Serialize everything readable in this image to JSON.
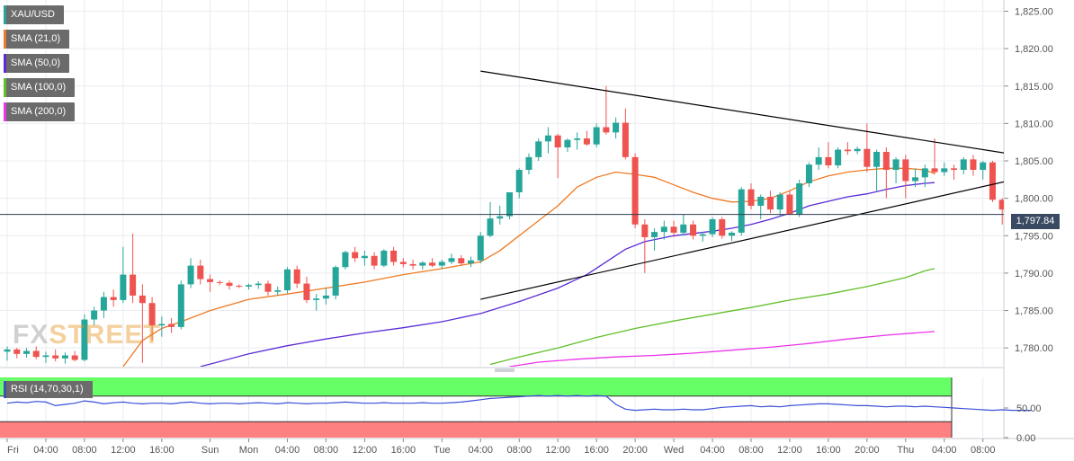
{
  "legend": [
    {
      "label": "XAU/USD",
      "color": "#26a69a"
    },
    {
      "label": "SMA (21,0)",
      "color": "#f07a23"
    },
    {
      "label": "SMA (50,0)",
      "color": "#5b2bd6"
    },
    {
      "label": "SMA (100,0)",
      "color": "#62bf2a"
    },
    {
      "label": "SMA (200,0)",
      "color": "#ea33ea"
    }
  ],
  "watermark": {
    "part1": "FX",
    "part2": "STREET"
  },
  "price_badge": "1,797.84",
  "rsi_label": "RSI (14,70,30,1)",
  "chart_data": {
    "type": "candlestick",
    "symbol": "XAU/USD",
    "ylim": [
      1777.5,
      1826.5
    ],
    "price_ticks": [
      "1,825.00",
      "1,820.00",
      "1,815.00",
      "1,810.00",
      "1,805.00",
      "1,800.00",
      "1,795.00",
      "1,790.00",
      "1,785.00",
      "1,780.00"
    ],
    "price_tick_values": [
      1825,
      1820,
      1815,
      1810,
      1805,
      1800,
      1795,
      1790,
      1785,
      1780
    ],
    "last_price": 1797.84,
    "x_ticks": [
      {
        "label": "Fri",
        "x": 0
      },
      {
        "label": "04:00",
        "x": 4
      },
      {
        "label": "08:00",
        "x": 8
      },
      {
        "label": "12:00",
        "x": 12
      },
      {
        "label": "16:00",
        "x": 16
      },
      {
        "label": "Sun",
        "x": 21
      },
      {
        "label": "Mon",
        "x": 25
      },
      {
        "label": "04:00",
        "x": 29
      },
      {
        "label": "08:00",
        "x": 33
      },
      {
        "label": "12:00",
        "x": 37
      },
      {
        "label": "16:00",
        "x": 41
      },
      {
        "label": "Tue",
        "x": 45
      },
      {
        "label": "04:00",
        "x": 49
      },
      {
        "label": "08:00",
        "x": 53
      },
      {
        "label": "12:00",
        "x": 57
      },
      {
        "label": "16:00",
        "x": 61
      },
      {
        "label": "20:00",
        "x": 65
      },
      {
        "label": "Wed",
        "x": 69
      },
      {
        "label": "04:00",
        "x": 73
      },
      {
        "label": "08:00",
        "x": 77
      },
      {
        "label": "12:00",
        "x": 81
      },
      {
        "label": "16:00",
        "x": 85
      },
      {
        "label": "20:00",
        "x": 89
      },
      {
        "label": "Thu",
        "x": 93
      },
      {
        "label": "04:00",
        "x": 97
      },
      {
        "label": "08:00",
        "x": 101
      }
    ],
    "candles": [
      [
        1779.5,
        1780.2,
        1778.3,
        1779.8
      ],
      [
        1779.8,
        1780.0,
        1778.6,
        1779.2
      ],
      [
        1779.2,
        1780.0,
        1778.7,
        1779.6
      ],
      [
        1779.6,
        1780.2,
        1778.5,
        1778.8
      ],
      [
        1778.8,
        1779.5,
        1778.0,
        1779.0
      ],
      [
        1779.0,
        1779.8,
        1778.2,
        1778.6
      ],
      [
        1778.6,
        1779.4,
        1777.9,
        1779.0
      ],
      [
        1779.0,
        1779.6,
        1778.2,
        1778.4
      ],
      [
        1778.4,
        1784.5,
        1778.2,
        1783.8
      ],
      [
        1783.8,
        1785.5,
        1783.0,
        1785.0
      ],
      [
        1785.0,
        1787.5,
        1784.0,
        1786.8
      ],
      [
        1786.8,
        1787.8,
        1785.5,
        1786.4
      ],
      [
        1786.4,
        1793.5,
        1786.0,
        1789.8
      ],
      [
        1789.8,
        1795.3,
        1786.0,
        1787.0
      ],
      [
        1787.0,
        1788.5,
        1778.0,
        1786.0
      ],
      [
        1786.0,
        1786.8,
        1781.0,
        1783.0
      ],
      [
        1783.0,
        1784.2,
        1781.5,
        1783.2
      ],
      [
        1783.2,
        1784.0,
        1782.0,
        1782.8
      ],
      [
        1782.8,
        1789.0,
        1782.5,
        1788.5
      ],
      [
        1788.5,
        1792.0,
        1788.0,
        1791.0
      ],
      [
        1791.0,
        1791.8,
        1788.5,
        1789.2
      ],
      [
        1789.2,
        1789.8,
        1787.5,
        1788.8
      ],
      [
        1788.8,
        1789.0,
        1788.4,
        1788.7
      ],
      [
        1788.7,
        1789.0,
        1787.8,
        1788.3
      ],
      [
        1788.3,
        1788.5,
        1788.0,
        1788.2
      ],
      [
        1788.2,
        1788.6,
        1787.8,
        1788.4
      ],
      [
        1788.4,
        1788.9,
        1787.9,
        1788.6
      ],
      [
        1788.6,
        1789.0,
        1787.0,
        1787.5
      ],
      [
        1787.5,
        1788.2,
        1787.0,
        1787.7
      ],
      [
        1787.7,
        1790.8,
        1787.3,
        1790.5
      ],
      [
        1790.5,
        1791.0,
        1788.0,
        1788.6
      ],
      [
        1788.6,
        1789.5,
        1786.0,
        1786.4
      ],
      [
        1786.4,
        1787.2,
        1785.0,
        1786.6
      ],
      [
        1786.6,
        1788.0,
        1785.8,
        1787.0
      ],
      [
        1787.0,
        1791.0,
        1786.5,
        1790.8
      ],
      [
        1790.8,
        1793.0,
        1790.5,
        1792.8
      ],
      [
        1792.8,
        1793.5,
        1791.5,
        1792.0
      ],
      [
        1792.0,
        1793.0,
        1791.0,
        1792.3
      ],
      [
        1792.3,
        1792.8,
        1790.5,
        1791.0
      ],
      [
        1791.0,
        1793.2,
        1790.8,
        1793.0
      ],
      [
        1793.0,
        1793.5,
        1791.0,
        1791.5
      ],
      [
        1791.5,
        1792.0,
        1790.8,
        1791.2
      ],
      [
        1791.2,
        1791.8,
        1790.5,
        1791.0
      ],
      [
        1791.0,
        1791.6,
        1790.5,
        1791.4
      ],
      [
        1791.4,
        1792.0,
        1790.8,
        1791.0
      ],
      [
        1791.0,
        1791.8,
        1790.6,
        1791.5
      ],
      [
        1791.5,
        1792.6,
        1791.2,
        1792.0
      ],
      [
        1792.0,
        1792.4,
        1791.0,
        1791.3
      ],
      [
        1791.3,
        1792.2,
        1790.8,
        1791.7
      ],
      [
        1791.7,
        1795.5,
        1791.3,
        1795.0
      ],
      [
        1795.0,
        1799.5,
        1794.8,
        1797.3
      ],
      [
        1797.3,
        1799.0,
        1796.5,
        1797.6
      ],
      [
        1797.6,
        1800.5,
        1797.2,
        1800.8
      ],
      [
        1800.8,
        1804.0,
        1800.0,
        1803.8
      ],
      [
        1803.8,
        1806.0,
        1803.2,
        1805.5
      ],
      [
        1805.5,
        1808.0,
        1805.0,
        1807.6
      ],
      [
        1807.6,
        1809.5,
        1806.0,
        1808.4
      ],
      [
        1808.4,
        1808.6,
        1802.7,
        1806.8
      ],
      [
        1806.8,
        1808.0,
        1806.2,
        1807.8
      ],
      [
        1807.8,
        1808.8,
        1806.5,
        1808.0
      ],
      [
        1808.0,
        1809.0,
        1807.0,
        1807.2
      ],
      [
        1807.2,
        1810.0,
        1806.8,
        1809.5
      ],
      [
        1809.5,
        1815.0,
        1808.5,
        1808.8
      ],
      [
        1808.8,
        1810.8,
        1808.0,
        1810.1
      ],
      [
        1810.1,
        1812.0,
        1805.2,
        1805.5
      ],
      [
        1805.5,
        1806.0,
        1796.0,
        1796.5
      ],
      [
        1796.5,
        1797.2,
        1790.0,
        1794.8
      ],
      [
        1794.8,
        1796.0,
        1793.0,
        1795.5
      ],
      [
        1795.5,
        1797.0,
        1794.5,
        1796.2
      ],
      [
        1796.2,
        1797.0,
        1794.8,
        1795.4
      ],
      [
        1795.4,
        1797.8,
        1795.0,
        1796.5
      ],
      [
        1796.5,
        1797.0,
        1794.5,
        1795.0
      ],
      [
        1795.0,
        1795.5,
        1794.2,
        1795.2
      ],
      [
        1795.2,
        1797.5,
        1794.8,
        1797.2
      ],
      [
        1797.2,
        1797.5,
        1794.6,
        1795.0
      ],
      [
        1795.0,
        1795.6,
        1794.3,
        1795.4
      ],
      [
        1795.4,
        1801.5,
        1795.0,
        1801.2
      ],
      [
        1801.2,
        1802.0,
        1798.5,
        1799.0
      ],
      [
        1799.0,
        1800.5,
        1797.2,
        1800.2
      ],
      [
        1800.2,
        1801.0,
        1798.0,
        1798.5
      ],
      [
        1798.5,
        1800.8,
        1797.5,
        1800.5
      ],
      [
        1800.5,
        1801.0,
        1797.8,
        1797.8
      ],
      [
        1797.8,
        1802.5,
        1797.5,
        1802.0
      ],
      [
        1802.0,
        1804.8,
        1801.5,
        1804.5
      ],
      [
        1804.5,
        1806.8,
        1803.8,
        1805.5
      ],
      [
        1805.5,
        1807.5,
        1804.0,
        1804.4
      ],
      [
        1804.4,
        1806.8,
        1804.0,
        1806.5
      ],
      [
        1806.5,
        1807.5,
        1805.8,
        1806.3
      ],
      [
        1806.3,
        1806.9,
        1805.9,
        1806.6
      ],
      [
        1806.6,
        1810.0,
        1803.5,
        1804.2
      ],
      [
        1804.2,
        1806.5,
        1801.0,
        1806.2
      ],
      [
        1806.2,
        1806.8,
        1800.0,
        1803.8
      ],
      [
        1803.8,
        1805.5,
        1802.0,
        1805.2
      ],
      [
        1805.2,
        1805.8,
        1800.0,
        1802.3
      ],
      [
        1802.3,
        1804.0,
        1801.5,
        1802.8
      ],
      [
        1802.8,
        1804.5,
        1801.5,
        1804.0
      ],
      [
        1804.0,
        1808.0,
        1803.2,
        1803.5
      ],
      [
        1803.5,
        1804.8,
        1803.0,
        1804.0
      ],
      [
        1804.0,
        1804.5,
        1802.5,
        1803.8
      ],
      [
        1803.8,
        1805.5,
        1803.2,
        1805.2
      ],
      [
        1805.2,
        1805.8,
        1803.0,
        1803.8
      ],
      [
        1803.8,
        1805.0,
        1802.5,
        1804.8
      ],
      [
        1804.8,
        1805.0,
        1799.5,
        1799.8
      ],
      [
        1799.8,
        1800.0,
        1796.5,
        1798.5
      ],
      [
        1798.5,
        1799.5,
        1797.8,
        1797.8
      ],
      [
        1797.8,
        1798.5,
        1797.0,
        1797.6
      ],
      [
        1797.6,
        1798.6,
        1797.0,
        1797.84
      ]
    ],
    "series": [
      {
        "name": "SMA (21,0)",
        "color": "#f07a23",
        "points": [
          [
            12,
            1777.5
          ],
          [
            14,
            1781.0
          ],
          [
            16,
            1782.6
          ],
          [
            18,
            1783.5
          ],
          [
            21,
            1785.0
          ],
          [
            25,
            1786.5
          ],
          [
            29,
            1787.2
          ],
          [
            33,
            1788.0
          ],
          [
            37,
            1788.8
          ],
          [
            41,
            1789.8
          ],
          [
            45,
            1790.6
          ],
          [
            49,
            1791.5
          ],
          [
            51,
            1793.0
          ],
          [
            53,
            1795.0
          ],
          [
            55,
            1797.0
          ],
          [
            57,
            1799.0
          ],
          [
            59,
            1801.5
          ],
          [
            61,
            1802.8
          ],
          [
            63,
            1803.5
          ],
          [
            65,
            1803.2
          ],
          [
            67,
            1802.8
          ],
          [
            69,
            1801.8
          ],
          [
            71,
            1800.8
          ],
          [
            73,
            1800.0
          ],
          [
            75,
            1799.5
          ],
          [
            77,
            1799.6
          ],
          [
            79,
            1800.0
          ],
          [
            81,
            1801.0
          ],
          [
            83,
            1802.2
          ],
          [
            85,
            1803.0
          ],
          [
            87,
            1803.5
          ],
          [
            89,
            1803.8
          ],
          [
            91,
            1804.0
          ],
          [
            93,
            1804.0
          ],
          [
            95,
            1803.8
          ],
          [
            96,
            1803.3
          ]
        ]
      },
      {
        "name": "SMA (50,0)",
        "color": "#5b2bd6",
        "points": [
          [
            20,
            1777.5
          ],
          [
            25,
            1779.2
          ],
          [
            29,
            1780.3
          ],
          [
            33,
            1781.2
          ],
          [
            37,
            1782.0
          ],
          [
            41,
            1782.7
          ],
          [
            45,
            1783.5
          ],
          [
            49,
            1784.6
          ],
          [
            53,
            1786.2
          ],
          [
            57,
            1788.0
          ],
          [
            60,
            1789.8
          ],
          [
            62,
            1791.5
          ],
          [
            64,
            1793.2
          ],
          [
            66,
            1794.2
          ],
          [
            69,
            1795.0
          ],
          [
            73,
            1795.6
          ],
          [
            75,
            1796.0
          ],
          [
            77,
            1796.5
          ],
          [
            79,
            1797.2
          ],
          [
            81,
            1798.0
          ],
          [
            83,
            1799.0
          ],
          [
            85,
            1799.6
          ],
          [
            87,
            1800.2
          ],
          [
            89,
            1800.6
          ],
          [
            91,
            1801.2
          ],
          [
            93,
            1801.7
          ],
          [
            95,
            1802.0
          ],
          [
            96,
            1802.1
          ]
        ]
      },
      {
        "name": "SMA (100,0)",
        "color": "#62bf2a",
        "points": [
          [
            50,
            1777.8
          ],
          [
            53,
            1778.8
          ],
          [
            57,
            1780.0
          ],
          [
            61,
            1781.4
          ],
          [
            65,
            1782.6
          ],
          [
            69,
            1783.6
          ],
          [
            73,
            1784.5
          ],
          [
            77,
            1785.4
          ],
          [
            81,
            1786.4
          ],
          [
            85,
            1787.2
          ],
          [
            89,
            1788.2
          ],
          [
            93,
            1789.4
          ],
          [
            95,
            1790.3
          ],
          [
            96,
            1790.6
          ]
        ]
      },
      {
        "name": "SMA (200,0)",
        "color": "#ea33ea",
        "points": [
          [
            52,
            1777.5
          ],
          [
            55,
            1778.1
          ],
          [
            59,
            1778.5
          ],
          [
            63,
            1778.8
          ],
          [
            67,
            1779.0
          ],
          [
            71,
            1779.3
          ],
          [
            75,
            1779.7
          ],
          [
            79,
            1780.1
          ],
          [
            83,
            1780.6
          ],
          [
            87,
            1781.2
          ],
          [
            91,
            1781.7
          ],
          [
            96,
            1782.2
          ]
        ]
      }
    ],
    "trendlines": [
      {
        "from": [
          49,
          1817.0
        ],
        "to": [
          107,
          1805.3
        ],
        "color": "#000000"
      },
      {
        "from": [
          49,
          1786.5
        ],
        "to": [
          107,
          1803.3
        ],
        "color": "#000000"
      }
    ],
    "rsi": {
      "label": "RSI (14,70,30,1)",
      "levels": [
        70,
        30
      ],
      "ticks": [
        "50.00",
        "0.00"
      ],
      "tick_values": [
        50,
        0
      ],
      "overbought_color": "#66ff66",
      "oversold_color": "#ff8080",
      "line_color": "#3b4fd8",
      "values": [
        58,
        60,
        59,
        61,
        60,
        54,
        56,
        58,
        62,
        60,
        57,
        59,
        60,
        58,
        57,
        58,
        58,
        57,
        59,
        60,
        58,
        57,
        58,
        58,
        57,
        58,
        59,
        58,
        57,
        59,
        58,
        57,
        58,
        58,
        59,
        60,
        59,
        58,
        58,
        59,
        58,
        58,
        58,
        59,
        58,
        58,
        59,
        60,
        62,
        64,
        66,
        67,
        68,
        69,
        70,
        71,
        70,
        71,
        70,
        71,
        70,
        71,
        70,
        56,
        48,
        46,
        47,
        48,
        47,
        47,
        48,
        47,
        47,
        49,
        51,
        52,
        53,
        54,
        52,
        53,
        52,
        54,
        55,
        56,
        57,
        57,
        56,
        55,
        54,
        54,
        53,
        52,
        53,
        53,
        52,
        53,
        52,
        51,
        50,
        49,
        48,
        47,
        46,
        47,
        46,
        46,
        46
      ]
    }
  }
}
